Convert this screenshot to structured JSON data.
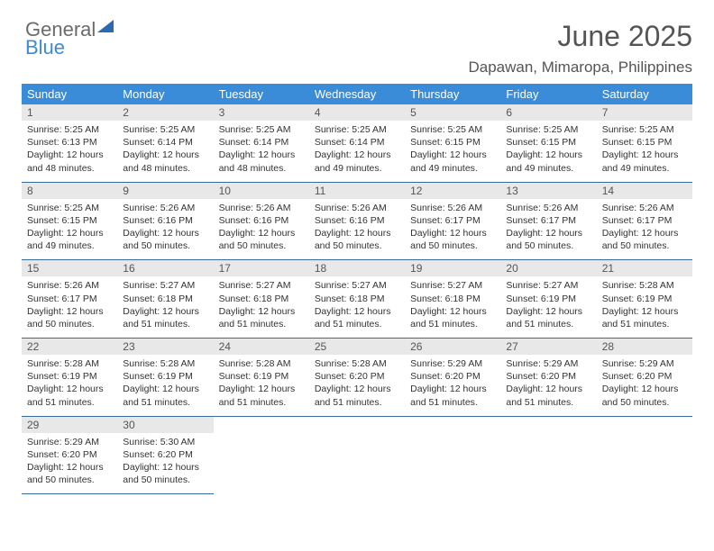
{
  "logo": {
    "text1": "General",
    "text2": "Blue"
  },
  "title": "June 2025",
  "subtitle": "Dapawan, Mimaropa, Philippines",
  "header_bg": "#3a8bd8",
  "daynum_bg": "#e8e8e8",
  "border_color": "#3a6a9a",
  "weekdays": [
    "Sunday",
    "Monday",
    "Tuesday",
    "Wednesday",
    "Thursday",
    "Friday",
    "Saturday"
  ],
  "weeks": [
    {
      "nums": [
        "1",
        "2",
        "3",
        "4",
        "5",
        "6",
        "7"
      ],
      "cells": [
        {
          "sunrise": "Sunrise: 5:25 AM",
          "sunset": "Sunset: 6:13 PM",
          "day1": "Daylight: 12 hours",
          "day2": "and 48 minutes."
        },
        {
          "sunrise": "Sunrise: 5:25 AM",
          "sunset": "Sunset: 6:14 PM",
          "day1": "Daylight: 12 hours",
          "day2": "and 48 minutes."
        },
        {
          "sunrise": "Sunrise: 5:25 AM",
          "sunset": "Sunset: 6:14 PM",
          "day1": "Daylight: 12 hours",
          "day2": "and 48 minutes."
        },
        {
          "sunrise": "Sunrise: 5:25 AM",
          "sunset": "Sunset: 6:14 PM",
          "day1": "Daylight: 12 hours",
          "day2": "and 49 minutes."
        },
        {
          "sunrise": "Sunrise: 5:25 AM",
          "sunset": "Sunset: 6:15 PM",
          "day1": "Daylight: 12 hours",
          "day2": "and 49 minutes."
        },
        {
          "sunrise": "Sunrise: 5:25 AM",
          "sunset": "Sunset: 6:15 PM",
          "day1": "Daylight: 12 hours",
          "day2": "and 49 minutes."
        },
        {
          "sunrise": "Sunrise: 5:25 AM",
          "sunset": "Sunset: 6:15 PM",
          "day1": "Daylight: 12 hours",
          "day2": "and 49 minutes."
        }
      ]
    },
    {
      "nums": [
        "8",
        "9",
        "10",
        "11",
        "12",
        "13",
        "14"
      ],
      "cells": [
        {
          "sunrise": "Sunrise: 5:25 AM",
          "sunset": "Sunset: 6:15 PM",
          "day1": "Daylight: 12 hours",
          "day2": "and 49 minutes."
        },
        {
          "sunrise": "Sunrise: 5:26 AM",
          "sunset": "Sunset: 6:16 PM",
          "day1": "Daylight: 12 hours",
          "day2": "and 50 minutes."
        },
        {
          "sunrise": "Sunrise: 5:26 AM",
          "sunset": "Sunset: 6:16 PM",
          "day1": "Daylight: 12 hours",
          "day2": "and 50 minutes."
        },
        {
          "sunrise": "Sunrise: 5:26 AM",
          "sunset": "Sunset: 6:16 PM",
          "day1": "Daylight: 12 hours",
          "day2": "and 50 minutes."
        },
        {
          "sunrise": "Sunrise: 5:26 AM",
          "sunset": "Sunset: 6:17 PM",
          "day1": "Daylight: 12 hours",
          "day2": "and 50 minutes."
        },
        {
          "sunrise": "Sunrise: 5:26 AM",
          "sunset": "Sunset: 6:17 PM",
          "day1": "Daylight: 12 hours",
          "day2": "and 50 minutes."
        },
        {
          "sunrise": "Sunrise: 5:26 AM",
          "sunset": "Sunset: 6:17 PM",
          "day1": "Daylight: 12 hours",
          "day2": "and 50 minutes."
        }
      ]
    },
    {
      "nums": [
        "15",
        "16",
        "17",
        "18",
        "19",
        "20",
        "21"
      ],
      "cells": [
        {
          "sunrise": "Sunrise: 5:26 AM",
          "sunset": "Sunset: 6:17 PM",
          "day1": "Daylight: 12 hours",
          "day2": "and 50 minutes."
        },
        {
          "sunrise": "Sunrise: 5:27 AM",
          "sunset": "Sunset: 6:18 PM",
          "day1": "Daylight: 12 hours",
          "day2": "and 51 minutes."
        },
        {
          "sunrise": "Sunrise: 5:27 AM",
          "sunset": "Sunset: 6:18 PM",
          "day1": "Daylight: 12 hours",
          "day2": "and 51 minutes."
        },
        {
          "sunrise": "Sunrise: 5:27 AM",
          "sunset": "Sunset: 6:18 PM",
          "day1": "Daylight: 12 hours",
          "day2": "and 51 minutes."
        },
        {
          "sunrise": "Sunrise: 5:27 AM",
          "sunset": "Sunset: 6:18 PM",
          "day1": "Daylight: 12 hours",
          "day2": "and 51 minutes."
        },
        {
          "sunrise": "Sunrise: 5:27 AM",
          "sunset": "Sunset: 6:19 PM",
          "day1": "Daylight: 12 hours",
          "day2": "and 51 minutes."
        },
        {
          "sunrise": "Sunrise: 5:28 AM",
          "sunset": "Sunset: 6:19 PM",
          "day1": "Daylight: 12 hours",
          "day2": "and 51 minutes."
        }
      ]
    },
    {
      "nums": [
        "22",
        "23",
        "24",
        "25",
        "26",
        "27",
        "28"
      ],
      "cells": [
        {
          "sunrise": "Sunrise: 5:28 AM",
          "sunset": "Sunset: 6:19 PM",
          "day1": "Daylight: 12 hours",
          "day2": "and 51 minutes."
        },
        {
          "sunrise": "Sunrise: 5:28 AM",
          "sunset": "Sunset: 6:19 PM",
          "day1": "Daylight: 12 hours",
          "day2": "and 51 minutes."
        },
        {
          "sunrise": "Sunrise: 5:28 AM",
          "sunset": "Sunset: 6:19 PM",
          "day1": "Daylight: 12 hours",
          "day2": "and 51 minutes."
        },
        {
          "sunrise": "Sunrise: 5:28 AM",
          "sunset": "Sunset: 6:20 PM",
          "day1": "Daylight: 12 hours",
          "day2": "and 51 minutes."
        },
        {
          "sunrise": "Sunrise: 5:29 AM",
          "sunset": "Sunset: 6:20 PM",
          "day1": "Daylight: 12 hours",
          "day2": "and 51 minutes."
        },
        {
          "sunrise": "Sunrise: 5:29 AM",
          "sunset": "Sunset: 6:20 PM",
          "day1": "Daylight: 12 hours",
          "day2": "and 51 minutes."
        },
        {
          "sunrise": "Sunrise: 5:29 AM",
          "sunset": "Sunset: 6:20 PM",
          "day1": "Daylight: 12 hours",
          "day2": "and 50 minutes."
        }
      ]
    },
    {
      "nums": [
        "29",
        "30",
        "",
        "",
        "",
        "",
        ""
      ],
      "cells": [
        {
          "sunrise": "Sunrise: 5:29 AM",
          "sunset": "Sunset: 6:20 PM",
          "day1": "Daylight: 12 hours",
          "day2": "and 50 minutes."
        },
        {
          "sunrise": "Sunrise: 5:30 AM",
          "sunset": "Sunset: 6:20 PM",
          "day1": "Daylight: 12 hours",
          "day2": "and 50 minutes."
        },
        null,
        null,
        null,
        null,
        null
      ]
    }
  ]
}
